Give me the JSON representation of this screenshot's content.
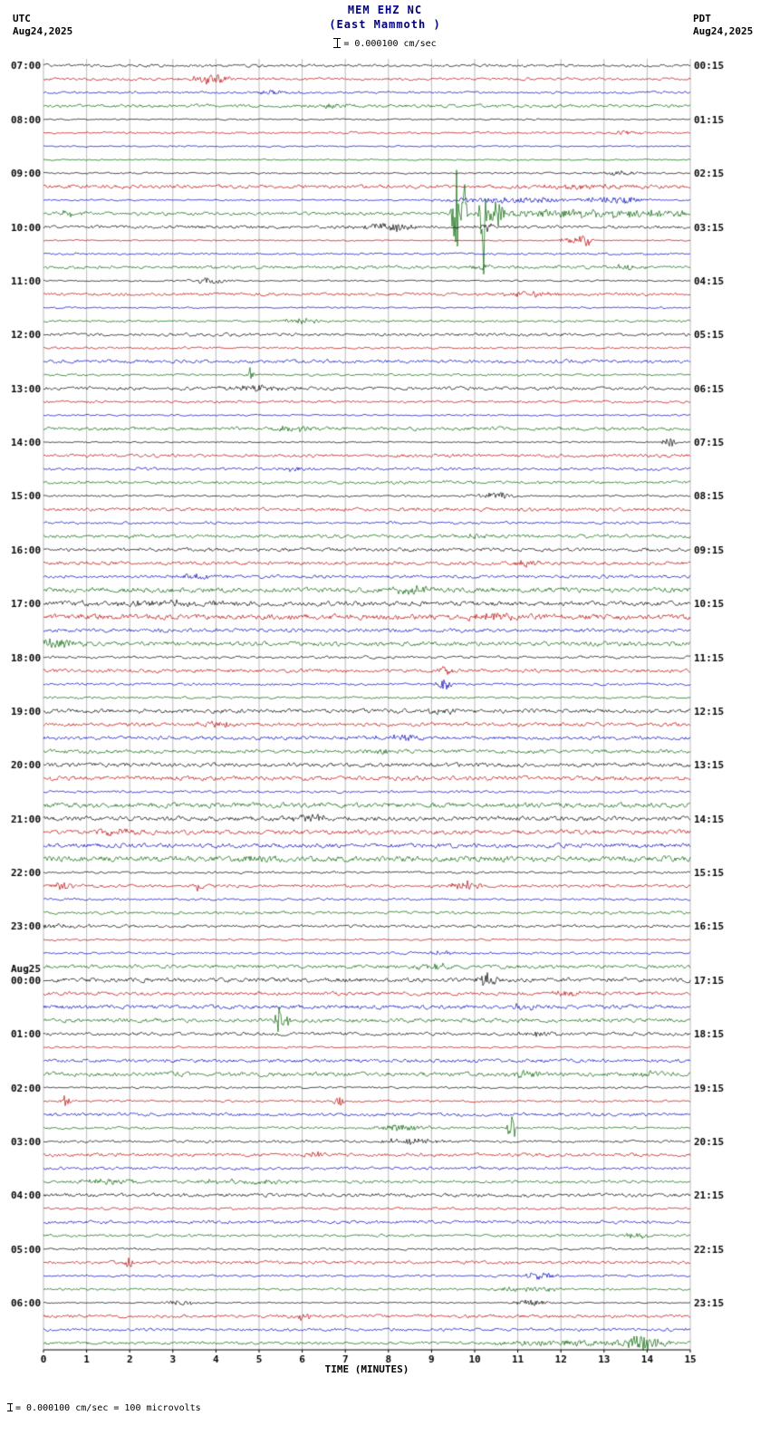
{
  "header": {
    "title": "MEM EHZ NC",
    "subtitle": "(East Mammoth )",
    "scale_text": "= 0.000100 cm/sec",
    "left": {
      "tz": "UTC",
      "date": "Aug24,2025"
    },
    "right": {
      "tz": "PDT",
      "date": "Aug24,2025"
    }
  },
  "axis": {
    "x_ticks": [
      "0",
      "1",
      "2",
      "3",
      "4",
      "5",
      "6",
      "7",
      "8",
      "9",
      "10",
      "11",
      "12",
      "13",
      "14",
      "15"
    ],
    "x_label": "TIME (MINUTES)"
  },
  "footer": {
    "text": "= 0.000100 cm/sec =    100 microvolts"
  },
  "chart_data": {
    "type": "seismogram",
    "station": "MEM",
    "channel": "EHZ",
    "network": "NC",
    "location_name": "East Mammoth",
    "start_utc": "Aug24,2025 07:00",
    "end_utc": "Aug25,2025 07:00",
    "minutes_per_line": 15,
    "rows": 96,
    "x_range": [
      0,
      15
    ],
    "trace_colors": [
      "#000000",
      "#bb0000",
      "#0000bb",
      "#006400"
    ],
    "left_labels": [
      {
        "row": 0,
        "label": "07:00"
      },
      {
        "row": 4,
        "label": "08:00"
      },
      {
        "row": 8,
        "label": "09:00"
      },
      {
        "row": 12,
        "label": "10:00"
      },
      {
        "row": 16,
        "label": "11:00"
      },
      {
        "row": 20,
        "label": "12:00"
      },
      {
        "row": 24,
        "label": "13:00"
      },
      {
        "row": 28,
        "label": "14:00"
      },
      {
        "row": 32,
        "label": "15:00"
      },
      {
        "row": 36,
        "label": "16:00"
      },
      {
        "row": 40,
        "label": "17:00"
      },
      {
        "row": 44,
        "label": "18:00"
      },
      {
        "row": 48,
        "label": "19:00"
      },
      {
        "row": 52,
        "label": "20:00"
      },
      {
        "row": 56,
        "label": "21:00"
      },
      {
        "row": 60,
        "label": "22:00"
      },
      {
        "row": 64,
        "label": "23:00"
      },
      {
        "row": 68,
        "label": "00:00",
        "date": "Aug25"
      },
      {
        "row": 72,
        "label": "01:00"
      },
      {
        "row": 76,
        "label": "02:00"
      },
      {
        "row": 80,
        "label": "03:00"
      },
      {
        "row": 84,
        "label": "04:00"
      },
      {
        "row": 88,
        "label": "05:00"
      },
      {
        "row": 92,
        "label": "06:00"
      }
    ],
    "right_labels": [
      {
        "row": 0,
        "label": "00:15"
      },
      {
        "row": 4,
        "label": "01:15"
      },
      {
        "row": 8,
        "label": "02:15"
      },
      {
        "row": 12,
        "label": "03:15"
      },
      {
        "row": 16,
        "label": "04:15"
      },
      {
        "row": 20,
        "label": "05:15"
      },
      {
        "row": 24,
        "label": "06:15"
      },
      {
        "row": 28,
        "label": "07:15"
      },
      {
        "row": 32,
        "label": "08:15"
      },
      {
        "row": 36,
        "label": "09:15"
      },
      {
        "row": 40,
        "label": "10:15"
      },
      {
        "row": 44,
        "label": "11:15"
      },
      {
        "row": 48,
        "label": "12:15"
      },
      {
        "row": 52,
        "label": "13:15"
      },
      {
        "row": 56,
        "label": "14:15"
      },
      {
        "row": 60,
        "label": "15:15"
      },
      {
        "row": 64,
        "label": "16:15"
      },
      {
        "row": 68,
        "label": "17:15"
      },
      {
        "row": 72,
        "label": "18:15"
      },
      {
        "row": 76,
        "label": "19:15"
      },
      {
        "row": 80,
        "label": "20:15"
      },
      {
        "row": 84,
        "label": "21:15"
      },
      {
        "row": 88,
        "label": "22:15"
      },
      {
        "row": 92,
        "label": "23:15"
      }
    ],
    "events": [
      {
        "row": 1,
        "min": 3.9,
        "amp": 5,
        "width": 0.45
      },
      {
        "row": 2,
        "min": 5.3,
        "amp": 2.2,
        "width": 0.5
      },
      {
        "row": 3,
        "min": 6.5,
        "amp": 1.8,
        "width": 0.6
      },
      {
        "row": 5,
        "min": 13.5,
        "amp": 2.0,
        "width": 0.4
      },
      {
        "row": 8,
        "min": 13.4,
        "amp": 2.2,
        "width": 0.5
      },
      {
        "row": 9,
        "min": 12.5,
        "amp": 2.0,
        "width": 1.0
      },
      {
        "row": 10,
        "min": 10.8,
        "amp": 3.0,
        "width": 1.5
      },
      {
        "row": 10,
        "min": 13.2,
        "amp": 3.5,
        "width": 0.8
      },
      {
        "row": 11,
        "min": 0.6,
        "amp": 2.5,
        "width": 0.3
      },
      {
        "row": 11,
        "min": 9.55,
        "amp": 65,
        "width": 0.07
      },
      {
        "row": 11,
        "min": 9.75,
        "amp": 40,
        "width": 0.06
      },
      {
        "row": 11,
        "min": 10.2,
        "amp": 75,
        "width": 0.07
      },
      {
        "row": 11,
        "min": 10.45,
        "amp": 18,
        "width": 0.2
      },
      {
        "row": 11,
        "min": 12.5,
        "amp": 4,
        "width": 2.0
      },
      {
        "row": 11,
        "min": 14.3,
        "amp": 3,
        "width": 0.7
      },
      {
        "row": 12,
        "min": 8.0,
        "amp": 5,
        "width": 0.55
      },
      {
        "row": 12,
        "min": 10.3,
        "amp": 6,
        "width": 0.12
      },
      {
        "row": 13,
        "min": 12.3,
        "amp": 3,
        "width": 0.4
      },
      {
        "row": 13,
        "min": 12.55,
        "amp": 9,
        "width": 0.12
      },
      {
        "row": 15,
        "min": 10.1,
        "amp": 2.5,
        "width": 0.3
      },
      {
        "row": 15,
        "min": 13.5,
        "amp": 2.5,
        "width": 0.3
      },
      {
        "row": 16,
        "min": 3.9,
        "amp": 3,
        "width": 0.5
      },
      {
        "row": 17,
        "min": 11.3,
        "amp": 3,
        "width": 0.6
      },
      {
        "row": 19,
        "min": 6.0,
        "amp": 2.5,
        "width": 0.5
      },
      {
        "row": 23,
        "min": 4.8,
        "amp": 8,
        "width": 0.08
      },
      {
        "row": 24,
        "min": 5.0,
        "amp": 3,
        "width": 0.7
      },
      {
        "row": 27,
        "min": 5.8,
        "amp": 2.8,
        "width": 0.4
      },
      {
        "row": 28,
        "min": 14.5,
        "amp": 6,
        "width": 0.15
      },
      {
        "row": 30,
        "min": 5.9,
        "amp": 2,
        "width": 0.4
      },
      {
        "row": 32,
        "min": 10.5,
        "amp": 5,
        "width": 0.3
      },
      {
        "row": 35,
        "min": 10.0,
        "amp": 3.5,
        "width": 0.25
      },
      {
        "row": 37,
        "min": 11.2,
        "amp": 4,
        "width": 0.3
      },
      {
        "row": 38,
        "min": 3.5,
        "amp": 3,
        "width": 0.5
      },
      {
        "row": 39,
        "min": 8.5,
        "amp": 3.5,
        "width": 0.4
      },
      {
        "row": 40,
        "min": 2.5,
        "amp": 2.5,
        "width": 1.8
      },
      {
        "row": 41,
        "min": 10.3,
        "amp": 4,
        "width": 0.5
      },
      {
        "row": 43,
        "min": 0.3,
        "amp": 4,
        "width": 0.5
      },
      {
        "row": 45,
        "min": 9.3,
        "amp": 5,
        "width": 0.15
      },
      {
        "row": 46,
        "min": 9.3,
        "amp": 6,
        "width": 0.2
      },
      {
        "row": 48,
        "min": 9.2,
        "amp": 3,
        "width": 0.3
      },
      {
        "row": 49,
        "min": 4.0,
        "amp": 3,
        "width": 0.4
      },
      {
        "row": 50,
        "min": 8.2,
        "amp": 3,
        "width": 0.5
      },
      {
        "row": 51,
        "min": 7.7,
        "amp": 3,
        "width": 0.3
      },
      {
        "row": 56,
        "min": 6.2,
        "amp": 3,
        "width": 0.5
      },
      {
        "row": 57,
        "min": 1.8,
        "amp": 3.5,
        "width": 0.4
      },
      {
        "row": 59,
        "min": 5.0,
        "amp": 3,
        "width": 0.5
      },
      {
        "row": 61,
        "min": 0.5,
        "amp": 4,
        "width": 0.3
      },
      {
        "row": 61,
        "min": 3.6,
        "amp": 6,
        "width": 0.1
      },
      {
        "row": 61,
        "min": 9.8,
        "amp": 5,
        "width": 0.3
      },
      {
        "row": 64,
        "min": 0.3,
        "amp": 2.5,
        "width": 0.6
      },
      {
        "row": 66,
        "min": 9.3,
        "amp": 2.5,
        "width": 0.3
      },
      {
        "row": 67,
        "min": 9.0,
        "amp": 3,
        "width": 0.4
      },
      {
        "row": 68,
        "min": 10.3,
        "amp": 8,
        "width": 0.2
      },
      {
        "row": 69,
        "min": 12.2,
        "amp": 2.5,
        "width": 0.4
      },
      {
        "row": 70,
        "min": 11.2,
        "amp": 3,
        "width": 0.4
      },
      {
        "row": 71,
        "min": 5.45,
        "amp": 12,
        "width": 0.1
      },
      {
        "row": 71,
        "min": 5.6,
        "amp": 5,
        "width": 0.15
      },
      {
        "row": 72,
        "min": 11.5,
        "amp": 2.5,
        "width": 0.4
      },
      {
        "row": 75,
        "min": 11.2,
        "amp": 3.5,
        "width": 0.3
      },
      {
        "row": 75,
        "min": 14.0,
        "amp": 2.5,
        "width": 0.3
      },
      {
        "row": 77,
        "min": 0.5,
        "amp": 8,
        "width": 0.1
      },
      {
        "row": 77,
        "min": 6.85,
        "amp": 10,
        "width": 0.1
      },
      {
        "row": 79,
        "min": 8.3,
        "amp": 3,
        "width": 0.7
      },
      {
        "row": 79,
        "min": 10.85,
        "amp": 14,
        "width": 0.1
      },
      {
        "row": 80,
        "min": 8.5,
        "amp": 3,
        "width": 0.8
      },
      {
        "row": 81,
        "min": 6.3,
        "amp": 4,
        "width": 0.2
      },
      {
        "row": 83,
        "min": 1.5,
        "amp": 3,
        "width": 0.6
      },
      {
        "row": 83,
        "min": 4.5,
        "amp": 2.5,
        "width": 1.2
      },
      {
        "row": 87,
        "min": 13.8,
        "amp": 3,
        "width": 0.3
      },
      {
        "row": 89,
        "min": 1.95,
        "amp": 6,
        "width": 0.12
      },
      {
        "row": 90,
        "min": 11.5,
        "amp": 4,
        "width": 0.35
      },
      {
        "row": 91,
        "min": 11.3,
        "amp": 2.5,
        "width": 0.8
      },
      {
        "row": 92,
        "min": 3.2,
        "amp": 2.5,
        "width": 0.4
      },
      {
        "row": 92,
        "min": 11.3,
        "amp": 3.5,
        "width": 0.4
      },
      {
        "row": 93,
        "min": 6.0,
        "amp": 3,
        "width": 0.4
      },
      {
        "row": 95,
        "min": 12.0,
        "amp": 2.5,
        "width": 1.5
      },
      {
        "row": 95,
        "min": 13.9,
        "amp": 8,
        "width": 0.5
      }
    ]
  }
}
